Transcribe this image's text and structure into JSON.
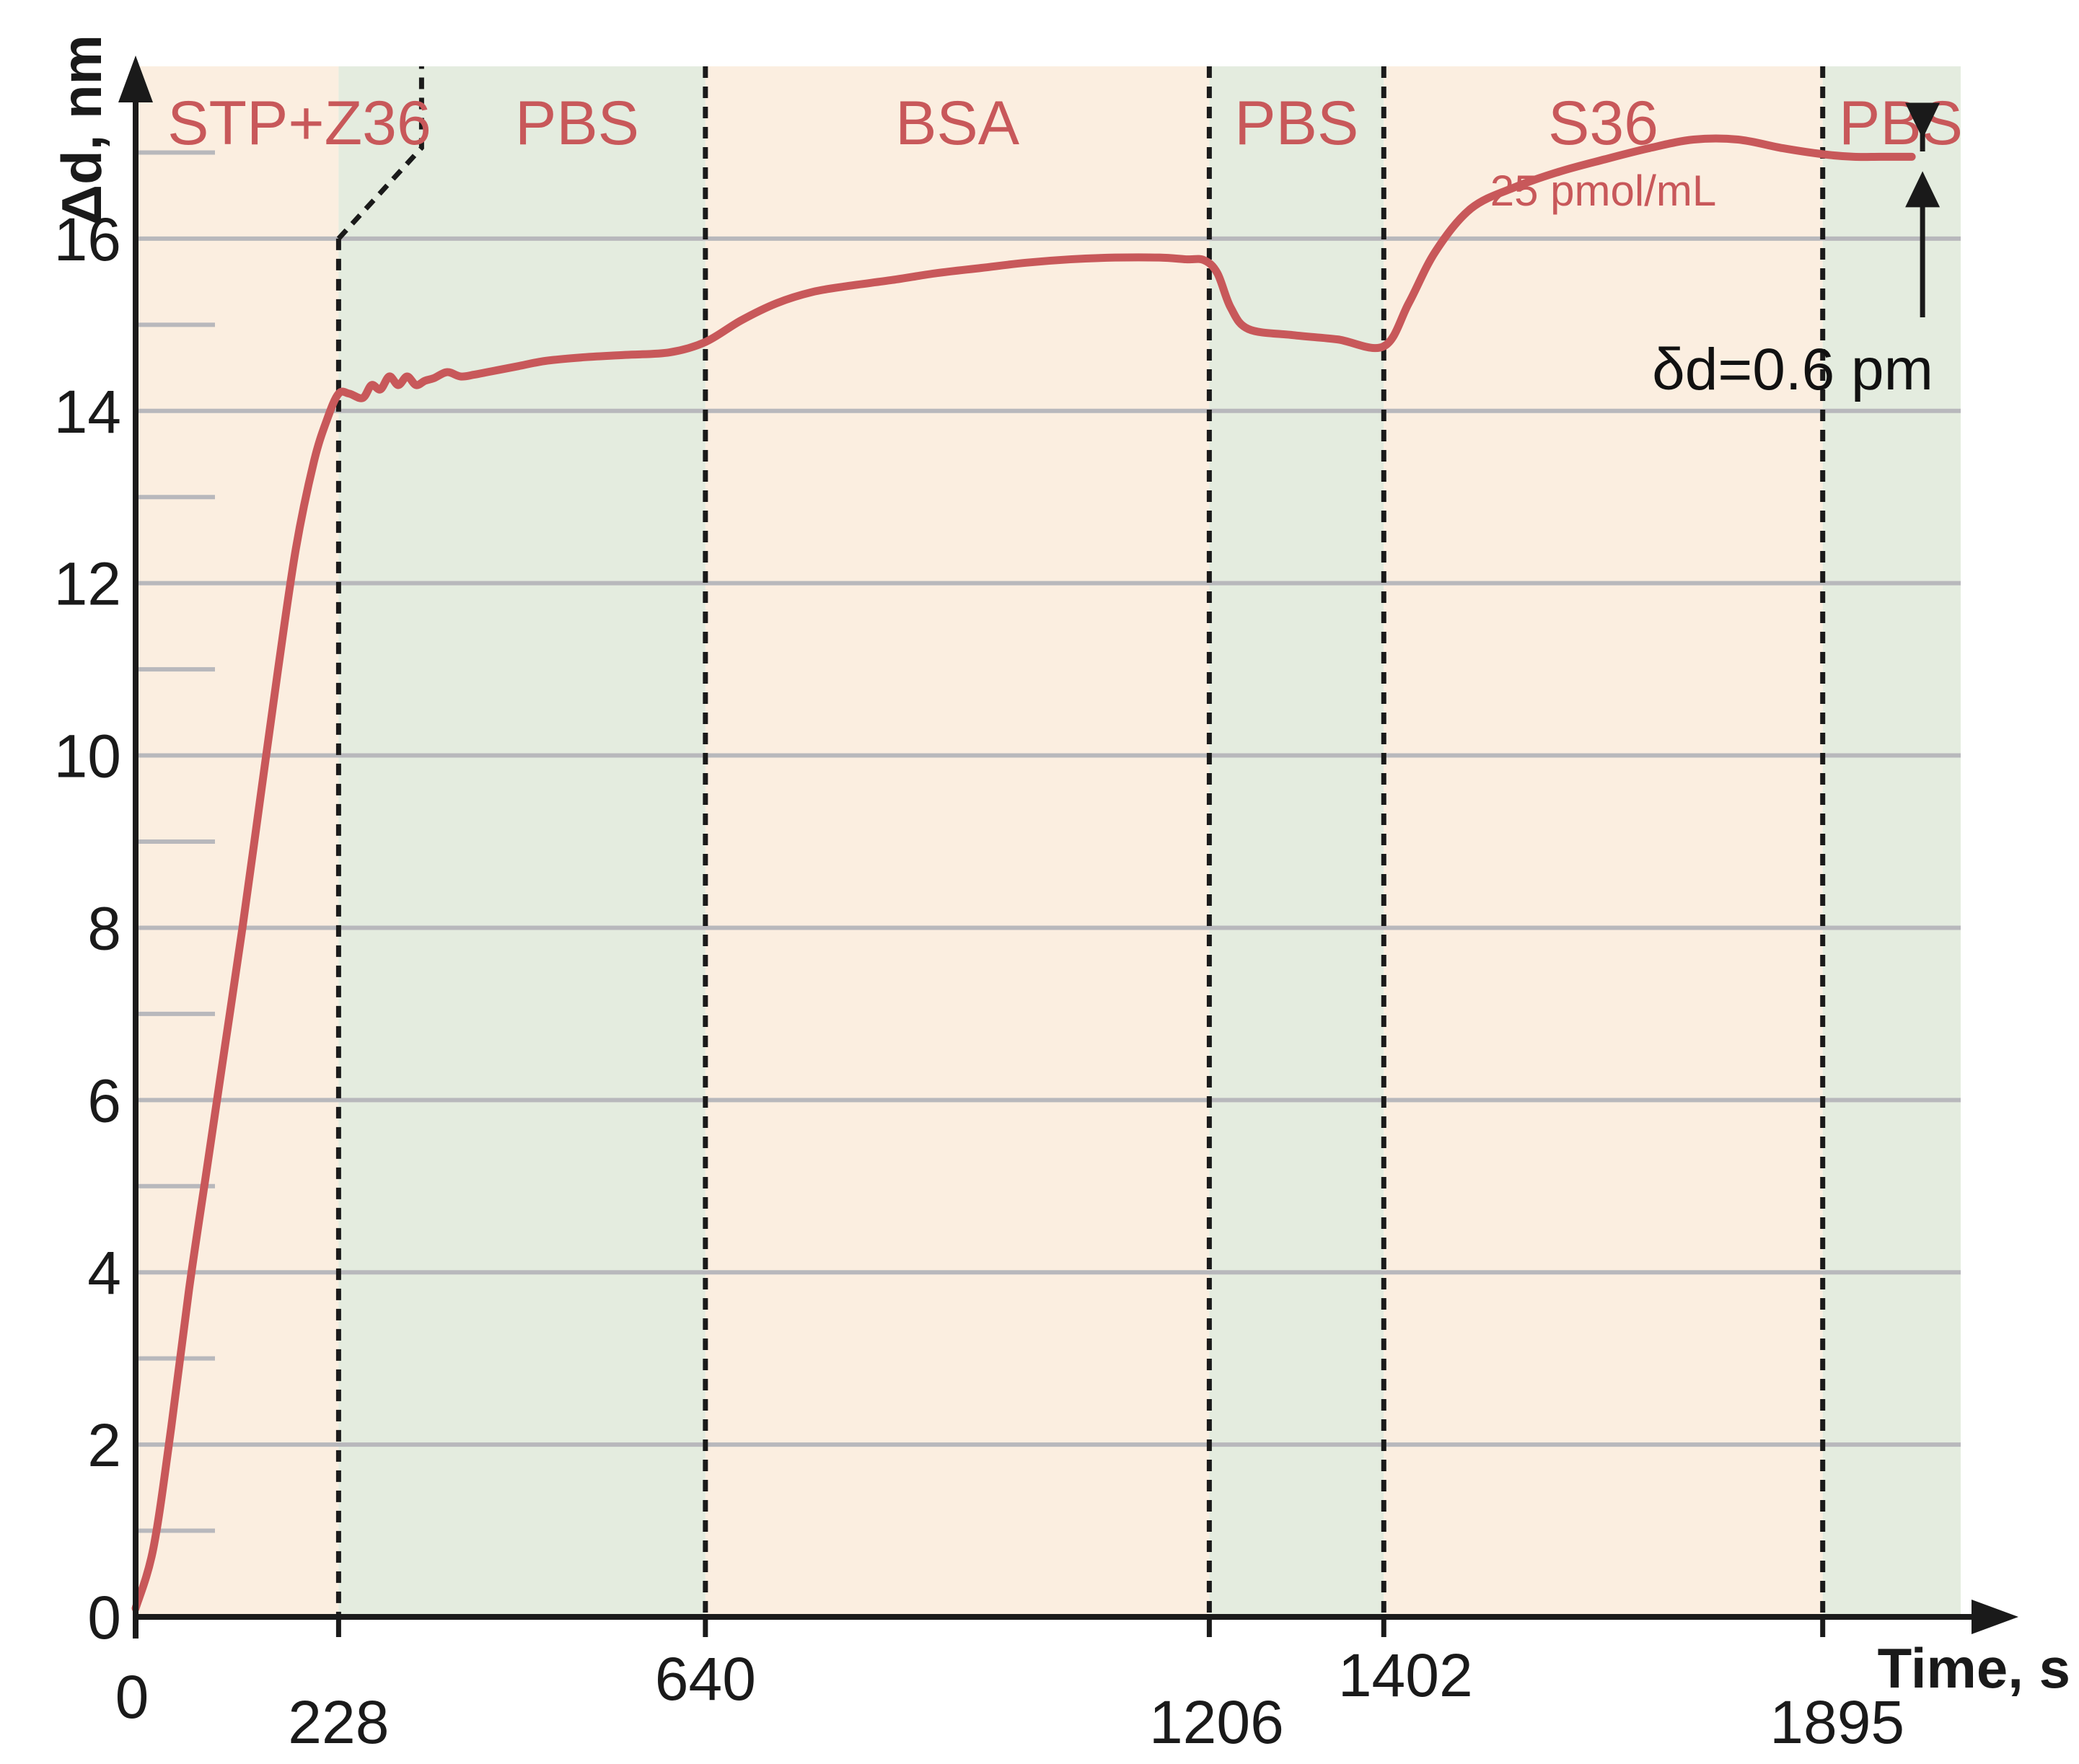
{
  "colors": {
    "region_a": "#fbeee0",
    "region_b": "#e4ecdf",
    "curve": "#c8585a",
    "phase_text": "#c8585a",
    "grid": "#b8b8bc",
    "axis": "#1a1a1a",
    "divider": "#1a1a1a"
  },
  "chart_data": {
    "type": "line",
    "xlabel": "Time, s",
    "ylabel": "Δd, nm",
    "xlim": [
      0,
      2050
    ],
    "ylim": [
      0,
      18
    ],
    "x_ticks": [
      0,
      228,
      640,
      1206,
      1402,
      1895
    ],
    "x_tick_labels": [
      "0",
      "228",
      "640",
      "1206",
      "1402",
      "1895"
    ],
    "y_ticks": [
      0,
      2,
      4,
      6,
      8,
      10,
      12,
      14,
      16
    ],
    "y_tick_labels": [
      "0",
      "2",
      "4",
      "6",
      "8",
      "10",
      "12",
      "14",
      "16"
    ],
    "y_minor_ticks": [
      1,
      3,
      5,
      7,
      9,
      11,
      13,
      15,
      17
    ],
    "grid": true,
    "phases": [
      {
        "label": "STP+Z36",
        "start": 0,
        "end": 228,
        "fill": "a"
      },
      {
        "label": "PBS",
        "start": 228,
        "end": 640,
        "fill": "b"
      },
      {
        "label": "BSA",
        "start": 640,
        "end": 1206,
        "fill": "a"
      },
      {
        "label": "PBS",
        "start": 1206,
        "end": 1402,
        "fill": "b"
      },
      {
        "label": "S36",
        "sublabel": "25 pmol/mL",
        "start": 1402,
        "end": 1895,
        "fill": "a"
      },
      {
        "label": "PBS",
        "start": 1895,
        "end": 2050,
        "fill": "b"
      }
    ],
    "annotation": {
      "text": "δd=0.6 pm",
      "x": 1995,
      "y_top": 17.2,
      "y_bottom": 16.95
    },
    "series": [
      {
        "x": [
          0,
          20,
          40,
          60,
          80,
          100,
          120,
          140,
          160,
          180,
          200,
          215,
          228,
          240,
          255,
          265,
          275,
          285,
          295,
          305,
          315,
          325,
          335,
          350,
          365,
          380,
          395,
          410,
          430,
          460,
          500,
          550,
          600,
          640,
          680,
          720,
          760,
          800,
          850,
          900,
          950,
          1000,
          1050,
          1100,
          1150,
          1180,
          1200,
          1215,
          1230,
          1250,
          1300,
          1350,
          1402,
          1430,
          1460,
          1500,
          1550,
          1600,
          1650,
          1700,
          1750,
          1800,
          1850,
          1895,
          1930,
          1960,
          1995
        ],
        "y": [
          0.1,
          0.8,
          2.2,
          3.8,
          5.2,
          6.6,
          8.0,
          9.5,
          11.0,
          12.4,
          13.4,
          13.9,
          14.2,
          14.2,
          14.15,
          14.3,
          14.25,
          14.4,
          14.3,
          14.4,
          14.3,
          14.35,
          14.38,
          14.45,
          14.4,
          14.42,
          14.45,
          14.48,
          14.52,
          14.58,
          14.62,
          14.65,
          14.68,
          14.8,
          15.05,
          15.25,
          15.38,
          15.45,
          15.52,
          15.6,
          15.66,
          15.72,
          15.76,
          15.78,
          15.78,
          15.76,
          15.75,
          15.6,
          15.2,
          14.95,
          14.88,
          14.83,
          14.75,
          15.25,
          15.85,
          16.35,
          16.6,
          16.78,
          16.92,
          17.05,
          17.15,
          17.15,
          17.05,
          16.98,
          16.95,
          16.95,
          16.95
        ]
      }
    ]
  }
}
